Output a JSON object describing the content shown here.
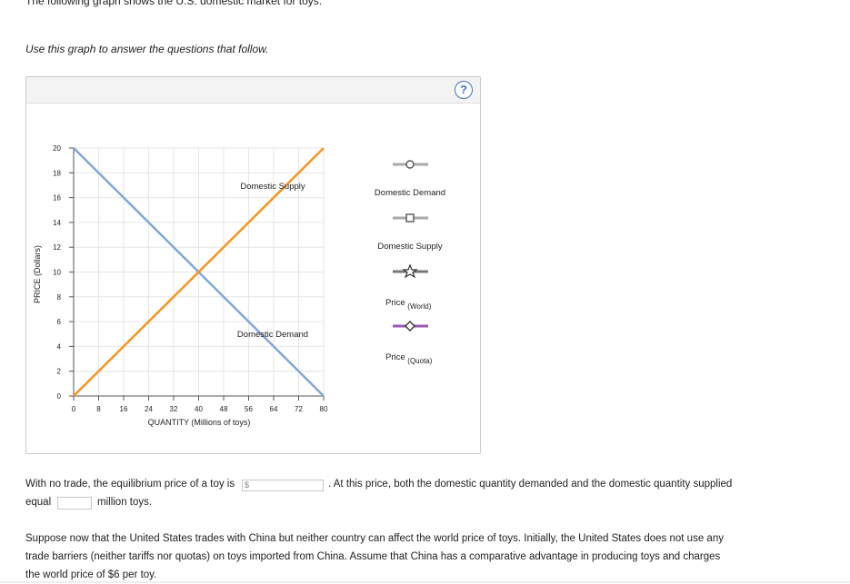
{
  "header_text": "The following graph shows the U.S. domestic market for toys.",
  "instruction": "Use this graph to answer the questions that follow.",
  "help_label": "?",
  "graph": {
    "ylabel": "PRICE (Dollars)",
    "xlabel": "QUANTITY (Millions of toys)",
    "y_ticks": [
      "0",
      "2",
      "4",
      "6",
      "8",
      "10",
      "12",
      "14",
      "16",
      "18",
      "20"
    ],
    "x_ticks": [
      "0",
      "8",
      "16",
      "24",
      "32",
      "40",
      "48",
      "56",
      "64",
      "72",
      "80"
    ],
    "supply_label": "Domestic Supply",
    "demand_label": "Domestic Demand",
    "colors": {
      "supply": "#f7941d",
      "demand": "#7ea7d8",
      "grid": "#e6e6e6",
      "world": "#9b59b6",
      "tool_gray": "#aaaaaa"
    }
  },
  "chart_data": {
    "type": "line",
    "xlim": [
      0,
      80
    ],
    "ylim": [
      0,
      20
    ],
    "xlabel": "QUANTITY (Millions of toys)",
    "ylabel": "PRICE (Dollars)",
    "grid": true,
    "series": [
      {
        "name": "Domestic Demand",
        "x": [
          0,
          80
        ],
        "y": [
          20,
          0
        ]
      },
      {
        "name": "Domestic Supply",
        "x": [
          0,
          80
        ],
        "y": [
          0,
          20
        ]
      }
    ]
  },
  "palette": [
    {
      "label_main": "Domestic Demand",
      "label_sub": "",
      "marker": "circle-icon"
    },
    {
      "label_main": "Domestic Supply",
      "label_sub": "",
      "marker": "square-icon"
    },
    {
      "label_main": "Price",
      "label_sub": "(World)",
      "marker": "star-icon"
    },
    {
      "label_main": "Price",
      "label_sub": "(Quota)",
      "marker": "diamond-icon"
    }
  ],
  "q1": {
    "part1": "With no trade, the equilibrium price of a toy is",
    "price_prefix": "$",
    "part2": ". At this price, both the domestic quantity demanded and the domestic quantity supplied",
    "part3": "equal",
    "part4": "million toys."
  },
  "paragraph": [
    "Suppose now that the United States trades with China but neither country can affect the world price of toys. Initially, the United States does not use any",
    "trade barriers (neither tariffs nor quotas) on toys imported from China. Assume that China has a comparative advantage in producing toys and charges",
    "the world price of $6 per toy."
  ]
}
